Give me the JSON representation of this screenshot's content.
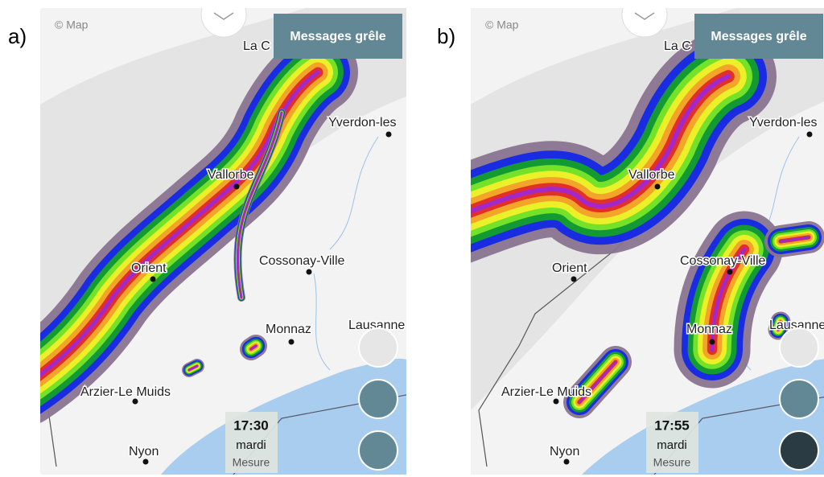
{
  "panels": [
    {
      "label": "a)",
      "credit": "© Map",
      "button": "Messages grêle",
      "places": [
        "La C",
        "Yverdon-les",
        "Vallorbe",
        "Orient",
        "Cossonay-Ville",
        "Monnaz",
        "Lausanne",
        "Arzier-Le Muids",
        "Nyon"
      ],
      "time": "17:30",
      "day": "mardi",
      "mode": "Mesure"
    },
    {
      "label": "b)",
      "credit": "© Map",
      "button": "Messages grêle",
      "places": [
        "La C",
        "Yverdon-les",
        "Vallorbe",
        "Orient",
        "Cossonay-Ville",
        "Monnaz",
        "Lausanne",
        "Arzier-Le Muids",
        "Nyon"
      ],
      "time": "17:55",
      "day": "mardi",
      "mode": "Mesure"
    }
  ]
}
